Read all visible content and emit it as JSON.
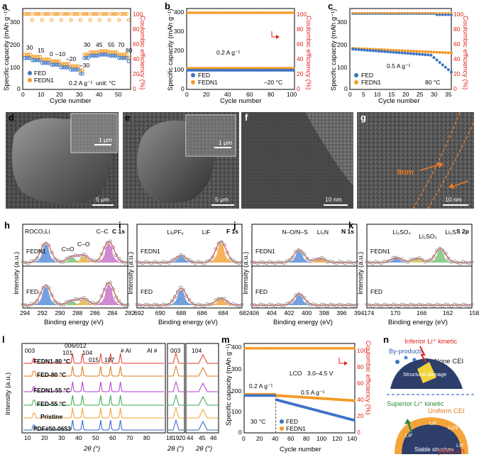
{
  "figure": {
    "panel_letters": [
      "a",
      "b",
      "c",
      "d",
      "e",
      "f",
      "g",
      "h",
      "i",
      "j",
      "k",
      "l",
      "m",
      "n"
    ],
    "watermark": "ybx8.cn"
  },
  "colors": {
    "fed": "#3b73c4",
    "fedn1": "#f39a25",
    "ce": "#e0241b",
    "blue_fill": "#5a8fd8",
    "green_fill": "#7ac47a",
    "purple_fill": "#c875c9",
    "orange_fill": "#f4a53a",
    "yellow_fill": "#e2c64b"
  },
  "panel_a": {
    "xlabel": "Cycle number",
    "ylabel": "Specific capacity (mAh g⁻¹)",
    "y2label": "Coulombic efficiency (%)",
    "xticks": [
      "0",
      "10",
      "20",
      "30",
      "40",
      "50"
    ],
    "yticks": [
      "0",
      "100",
      "200",
      "300"
    ],
    "y2ticks": [
      "0",
      "20",
      "40",
      "60",
      "80",
      "100"
    ],
    "temps_upper": [
      "30",
      "15",
      "0",
      "–10",
      "–20"
    ],
    "temps_lower": [
      "–30"
    ],
    "temps_right": [
      "30",
      "45",
      "55",
      "70",
      "80"
    ],
    "legend": [
      "FED",
      "FEDN1"
    ],
    "rate": "0.2 A g⁻¹",
    "unit": "unit: °C"
  },
  "panel_b": {
    "xlabel": "Cycle number",
    "ylabel": "Specific capacity (mAh g⁻¹)",
    "y2label": "Coulombic efficiency (%)",
    "xticks": [
      "0",
      "20",
      "40",
      "60",
      "80",
      "100"
    ],
    "yticks": [
      "0",
      "100",
      "200",
      "300",
      "400"
    ],
    "y2ticks": [
      "0",
      "20",
      "40",
      "60",
      "80",
      "100"
    ],
    "legend": [
      "FED",
      "FEDN1"
    ],
    "rate": "0.2 A g⁻¹",
    "temp": "–20 °C"
  },
  "panel_c": {
    "xlabel": "Cycle number",
    "ylabel": "Specific capacity (mAh g⁻¹)",
    "y2label": "Coulombic efficiency (%)",
    "xticks": [
      "0",
      "5",
      "10",
      "15",
      "20",
      "25",
      "30",
      "35"
    ],
    "yticks": [
      "0",
      "100",
      "200",
      "300"
    ],
    "y2ticks": [
      "0",
      "20",
      "40",
      "60",
      "80",
      "100"
    ],
    "legend": [
      "FED",
      "FEDN1"
    ],
    "rate": "0.5 A g⁻¹",
    "temp": "80 °C"
  },
  "images": {
    "d": {
      "scale": "5 μm",
      "inset_scale": "1 μm"
    },
    "e": {
      "scale": "5 μm",
      "inset_scale": "1 μm"
    },
    "f": {
      "scale": "10 nm"
    },
    "g": {
      "scale": "10 nm",
      "thickness": "8nm"
    }
  },
  "xps": [
    {
      "id": "h",
      "element": "C 1s",
      "xticks": [
        "294",
        "292",
        "290",
        "288",
        "286",
        "284",
        "282"
      ],
      "peaks": [
        "ROCO₂Li",
        "C=O",
        "C–O",
        "C–C"
      ]
    },
    {
      "id": "i",
      "element": "F 1s",
      "xticks": [
        "692",
        "690",
        "688",
        "686",
        "684",
        "682"
      ],
      "peaks": [
        "LiₓPFᵧ",
        "LiF"
      ]
    },
    {
      "id": "j",
      "element": "N 1s",
      "xticks": [
        "406",
        "404",
        "402",
        "400",
        "398",
        "396",
        "394"
      ],
      "peaks": [
        "N–O/N–S",
        "Li₃N"
      ]
    },
    {
      "id": "k",
      "element": "S 2p",
      "xticks": [
        "174",
        "170",
        "166",
        "162",
        "158"
      ],
      "peaks": [
        "Li₂SO₄",
        "Li₂SO₃",
        "Li₂S"
      ]
    }
  ],
  "xps_common": {
    "xlabel": "Binding energy (eV)",
    "ylabel": "Intensity (a.u.)",
    "top": "FEDN1",
    "bottom": "FED"
  },
  "panel_l": {
    "xlabel": "2θ (°)",
    "ylabel": "Intensity (a.u.)",
    "xticks_main": [
      "10",
      "20",
      "30",
      "40",
      "50",
      "60",
      "70",
      "80"
    ],
    "xticks_z1": [
      "18",
      "19",
      "20"
    ],
    "xticks_z2": [
      "44",
      "45",
      "46"
    ],
    "peaks": [
      "003",
      "006/012",
      "101",
      "104",
      "015",
      "107",
      "# Al",
      "Al #"
    ],
    "zoom_labels": [
      "003",
      "104"
    ],
    "traces": [
      "FEDN1-80 °C",
      "FED-80 °C",
      "FEDN1-55 °C",
      "FED-55 °C",
      "Pristine",
      "PDF#50-0653"
    ]
  },
  "panel_m": {
    "xlabel": "Cycle number",
    "ylabel": "Specific capacity (mAh g⁻¹)",
    "y2label": "Coulombic efficiency (%)",
    "xticks": [
      "0",
      "20",
      "40",
      "60",
      "80",
      "100",
      "120",
      "140"
    ],
    "yticks": [
      "0",
      "100",
      "200",
      "300",
      "400"
    ],
    "y2ticks": [
      "0",
      "20",
      "40",
      "60",
      "80",
      "100"
    ],
    "legend": [
      "FED",
      "FEDN1"
    ],
    "rate1": "0.2 A g⁻¹",
    "rate2": "0.5 A g⁻¹",
    "cell": "LCO",
    "voltage": "3.0–4.5 V",
    "temp": "30 °C"
  },
  "panel_n": {
    "top_title": "Inferior Li⁺ kinetic",
    "byproducts": "By-products",
    "none_cei": "None CEI",
    "damage": "Structural damage",
    "bottom_title": "Superior Li⁺ kinetic",
    "uniform": "Uniform CEI",
    "stable": "Stable structure",
    "lif": [
      "LiF",
      "LiF",
      "LiₓN",
      "LiF"
    ]
  }
}
